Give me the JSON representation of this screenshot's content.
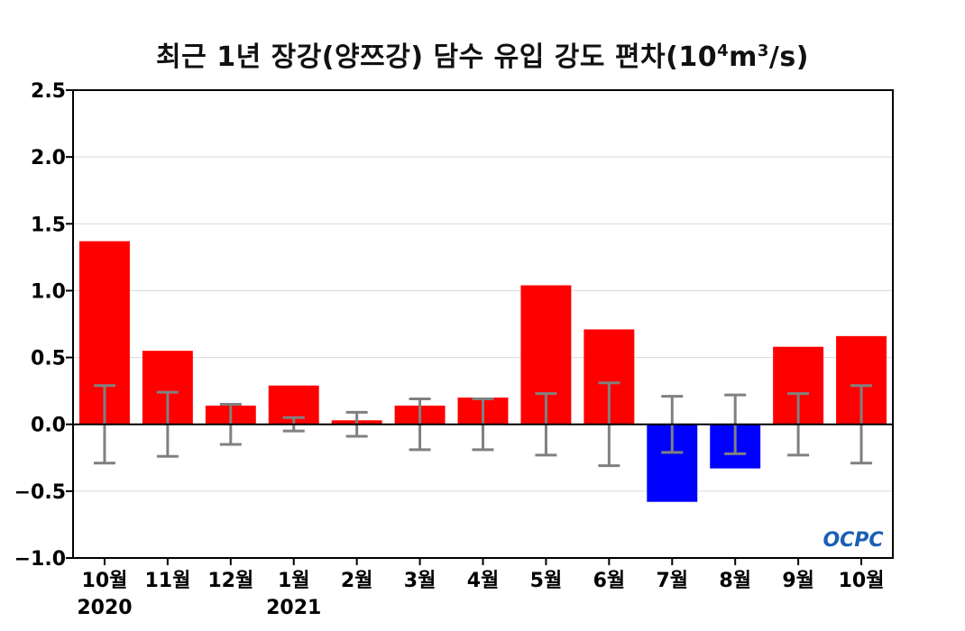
{
  "chart_data": {
    "type": "bar",
    "title": "최근 1년 장강(양쯔강) 담수 유입 강도 편차",
    "title_unit_base": "(10",
    "title_unit_exp1": "4",
    "title_unit_mid": "m",
    "title_unit_exp2": "3",
    "title_unit_tail": "/s)",
    "categories": [
      "10월",
      "11월",
      "12월",
      "1월",
      "2월",
      "3월",
      "4월",
      "5월",
      "6월",
      "7월",
      "8월",
      "9월",
      "10월"
    ],
    "year_labels": [
      {
        "index": 0,
        "text": "2020"
      },
      {
        "index": 3,
        "text": "2021"
      }
    ],
    "values": [
      1.37,
      0.55,
      0.14,
      0.29,
      0.03,
      0.14,
      0.2,
      1.04,
      0.71,
      -0.58,
      -0.33,
      0.58,
      0.66
    ],
    "error_half_range": [
      0.29,
      0.24,
      0.15,
      0.05,
      0.09,
      0.19,
      0.19,
      0.23,
      0.31,
      0.21,
      0.22,
      0.23,
      0.29
    ],
    "ylim": [
      -1.0,
      2.5
    ],
    "yticks": [
      -1.0,
      -0.5,
      0.0,
      0.5,
      1.0,
      1.5,
      2.0,
      2.5
    ],
    "ytick_labels": [
      "−1.0",
      "−0.5",
      "0.0",
      "0.5",
      "1.0",
      "1.5",
      "2.0",
      "2.5"
    ],
    "grid": true,
    "colors": {
      "positive": "#ff0000",
      "negative": "#0000ff",
      "error_bar": "#808080",
      "grid": "#d9d9d9"
    },
    "logo_text": "OCPC"
  }
}
